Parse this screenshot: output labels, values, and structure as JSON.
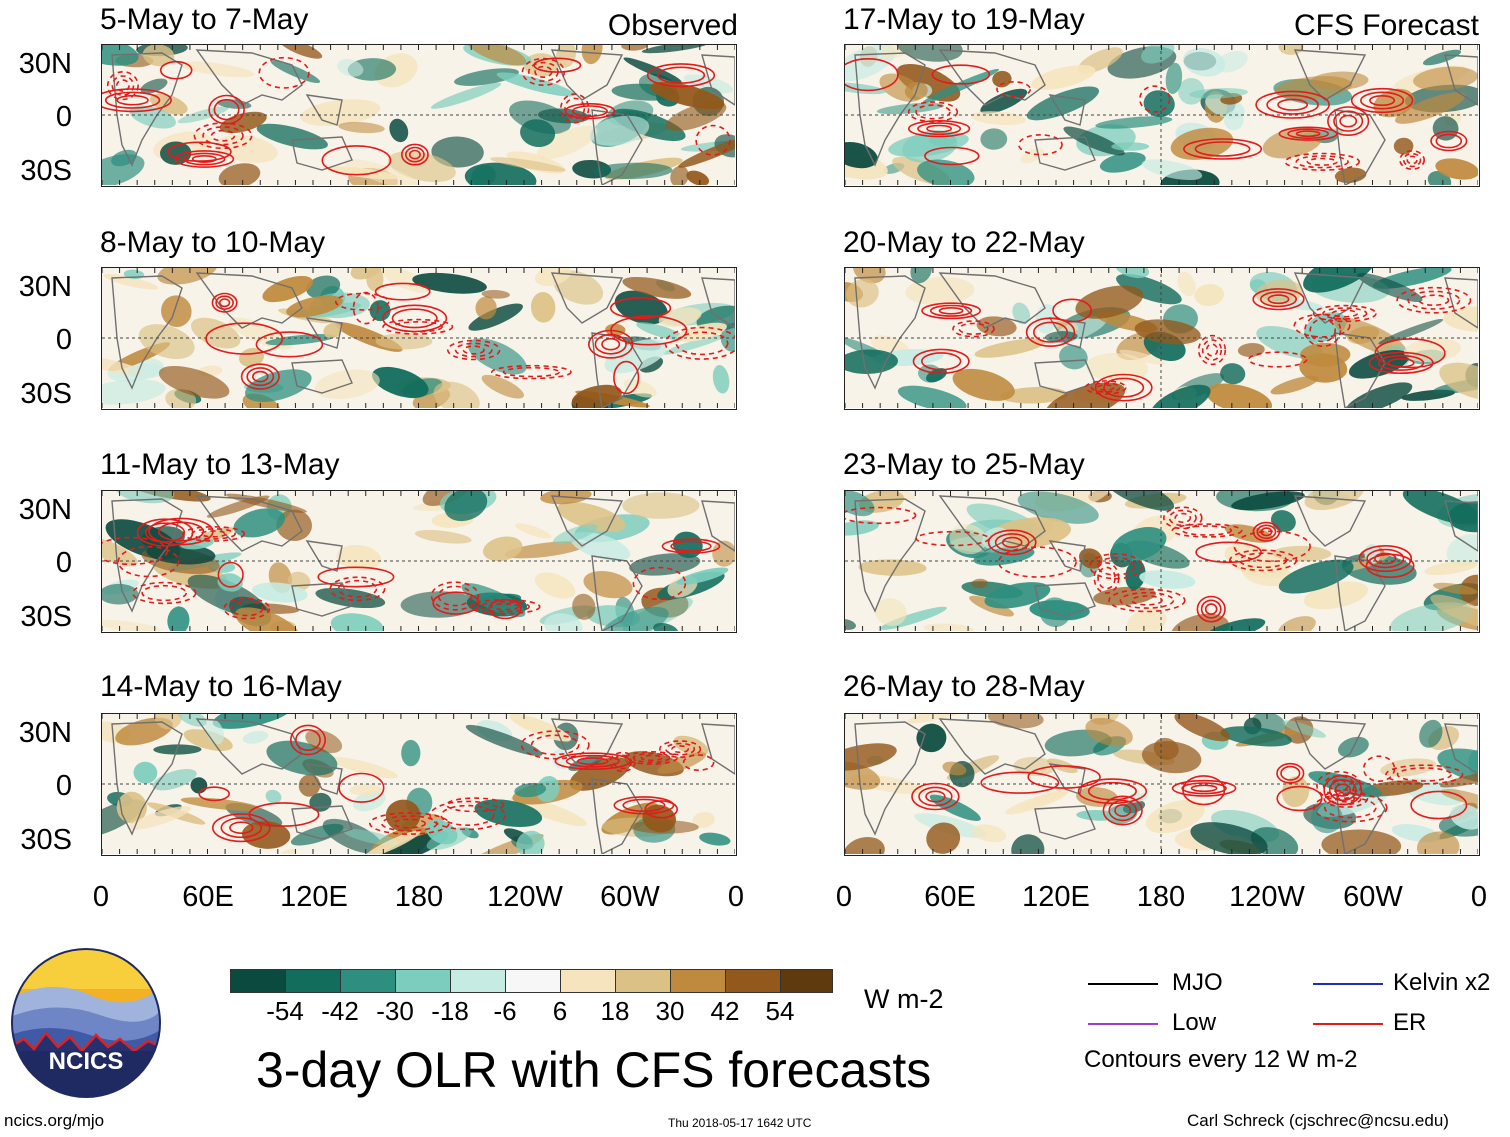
{
  "observed_label": "Observed",
  "forecast_label": "CFS Forecast",
  "panels_left": [
    {
      "title": "5-May to 7-May"
    },
    {
      "title": "8-May to 10-May"
    },
    {
      "title": "11-May to 13-May"
    },
    {
      "title": "14-May to 16-May"
    }
  ],
  "panels_right": [
    {
      "title": "17-May to 19-May"
    },
    {
      "title": "20-May to 22-May"
    },
    {
      "title": "23-May to 25-May"
    },
    {
      "title": "26-May to 28-May"
    }
  ],
  "lat_labels": [
    "30N",
    "0",
    "30S"
  ],
  "lon_labels": [
    "0",
    "60E",
    "120E",
    "180",
    "120W",
    "60W",
    "0"
  ],
  "colorbar": {
    "colors": [
      "#0b4a3f",
      "#126d5d",
      "#2e8f80",
      "#7ccdbd",
      "#c6ebe3",
      "#f7f7f7",
      "#f5e4bd",
      "#dcc186",
      "#bf8a3e",
      "#93581b",
      "#5e3a0e"
    ],
    "labels": [
      "-54",
      "-42",
      "-30",
      "-18",
      "-6",
      "6",
      "18",
      "30",
      "42",
      "54"
    ],
    "units": "W m-2"
  },
  "legend": {
    "items": [
      {
        "label": "MJO",
        "color": "#000000"
      },
      {
        "label": "Low",
        "color": "#9a3fd6"
      },
      {
        "label": "Kelvin x2",
        "color": "#1f2db8"
      },
      {
        "label": "ER",
        "color": "#e21b1b"
      }
    ],
    "contours_note": "Contours every 12 W m-2"
  },
  "main_title": "3-day OLR with CFS forecasts",
  "logo_text": "NCICS",
  "footer": {
    "url": "ncics.org/mjo",
    "timestamp": "Thu 2018-05-17 1642 UTC",
    "author": "Carl Schreck (cjschrec@ncsu.edu)"
  }
}
